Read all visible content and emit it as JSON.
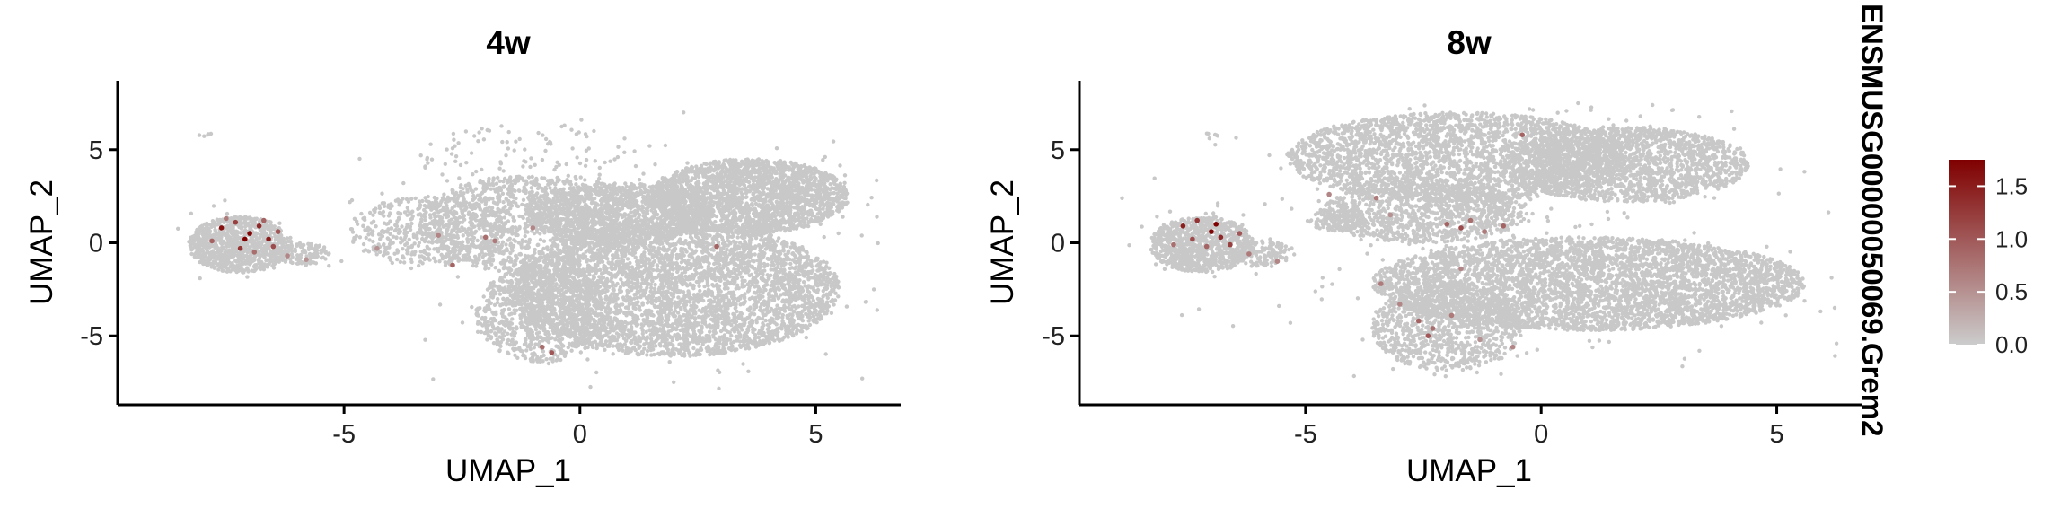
{
  "chart_data": [
    {
      "type": "scatter",
      "title": "4w",
      "xlabel": "UMAP_1",
      "ylabel": "UMAP_2",
      "xlim": [
        -9.8,
        6.8
      ],
      "ylim": [
        -8.7,
        8.7
      ],
      "x_ticks": [
        -5,
        0,
        5
      ],
      "y_ticks": [
        -5,
        0,
        5
      ],
      "grid": false,
      "background_color": "#c8c8c8",
      "cloud_regions": [
        {
          "cx": -7.2,
          "cy": -0.1,
          "rx": 1.1,
          "ry": 1.5,
          "n": 900
        },
        {
          "cx": -5.9,
          "cy": -0.6,
          "rx": 0.6,
          "ry": 0.6,
          "n": 120
        },
        {
          "cx": -3.2,
          "cy": 0.6,
          "rx": 1.7,
          "ry": 1.9,
          "n": 500
        },
        {
          "cx": -1.2,
          "cy": 1.0,
          "rx": 2.2,
          "ry": 2.6,
          "n": 1100
        },
        {
          "cx": 0.8,
          "cy": 1.6,
          "rx": 2.0,
          "ry": 1.6,
          "n": 1300
        },
        {
          "cx": 3.6,
          "cy": 2.5,
          "rx": 2.1,
          "ry": 2.0,
          "n": 2200
        },
        {
          "cx": 2.0,
          "cy": -2.5,
          "rx": 3.5,
          "ry": 3.6,
          "n": 4200
        },
        {
          "cx": -0.8,
          "cy": -3.8,
          "rx": 1.4,
          "ry": 2.6,
          "n": 800
        },
        {
          "cx": -1.0,
          "cy": 4.5,
          "rx": 2.4,
          "ry": 2.0,
          "n": 120
        },
        {
          "cx": -7.9,
          "cy": 5.8,
          "rx": 0.2,
          "ry": 0.1,
          "n": 6
        }
      ],
      "expressing": [
        {
          "x": -7.6,
          "y": 0.8,
          "v": 1.6
        },
        {
          "x": -7.3,
          "y": 1.1,
          "v": 1.2
        },
        {
          "x": -7.0,
          "y": 0.5,
          "v": 1.7
        },
        {
          "x": -6.8,
          "y": 0.9,
          "v": 1.4
        },
        {
          "x": -6.6,
          "y": 0.2,
          "v": 1.5
        },
        {
          "x": -6.5,
          "y": -0.2,
          "v": 1.1
        },
        {
          "x": -7.8,
          "y": 0.1,
          "v": 0.9
        },
        {
          "x": -7.2,
          "y": -0.3,
          "v": 1.3
        },
        {
          "x": -6.9,
          "y": -0.5,
          "v": 0.8
        },
        {
          "x": -6.4,
          "y": 0.6,
          "v": 1.0
        },
        {
          "x": -7.5,
          "y": 1.3,
          "v": 0.7
        },
        {
          "x": -6.2,
          "y": -0.7,
          "v": 0.6
        },
        {
          "x": -7.1,
          "y": 0.2,
          "v": 1.75
        },
        {
          "x": -6.7,
          "y": 1.2,
          "v": 0.9
        },
        {
          "x": -5.8,
          "y": -0.9,
          "v": 0.5
        },
        {
          "x": -3.0,
          "y": 0.4,
          "v": 0.6
        },
        {
          "x": -2.0,
          "y": 0.3,
          "v": 0.8
        },
        {
          "x": -1.8,
          "y": 0.1,
          "v": 0.7
        },
        {
          "x": -1.0,
          "y": 0.8,
          "v": 0.6
        },
        {
          "x": -2.7,
          "y": -1.2,
          "v": 0.9
        },
        {
          "x": -0.6,
          "y": -5.9,
          "v": 1.0
        },
        {
          "x": -0.8,
          "y": -5.6,
          "v": 0.8
        },
        {
          "x": 2.9,
          "y": -0.2,
          "v": 0.9
        },
        {
          "x": -4.3,
          "y": -0.3,
          "v": 0.5
        }
      ]
    },
    {
      "type": "scatter",
      "title": "8w",
      "xlabel": "UMAP_1",
      "ylabel": "UMAP_2",
      "xlim": [
        -9.8,
        6.8
      ],
      "ylim": [
        -8.7,
        8.7
      ],
      "x_ticks": [
        -5,
        0,
        5
      ],
      "y_ticks": [
        -5,
        0,
        5
      ],
      "grid": false,
      "background_color": "#c8c8c8",
      "cloud_regions": [
        {
          "cx": -7.2,
          "cy": -0.1,
          "rx": 1.1,
          "ry": 1.5,
          "n": 900
        },
        {
          "cx": -5.9,
          "cy": -0.6,
          "rx": 0.7,
          "ry": 0.7,
          "n": 140
        },
        {
          "cx": -1.8,
          "cy": 4.6,
          "rx": 3.6,
          "ry": 2.4,
          "n": 2600
        },
        {
          "cx": 1.8,
          "cy": 4.2,
          "rx": 2.6,
          "ry": 2.0,
          "n": 1800
        },
        {
          "cx": -2.5,
          "cy": 1.6,
          "rx": 2.2,
          "ry": 1.6,
          "n": 1000
        },
        {
          "cx": 1.0,
          "cy": -2.2,
          "rx": 4.6,
          "ry": 2.5,
          "n": 4200
        },
        {
          "cx": -2.0,
          "cy": -4.5,
          "rx": 1.6,
          "ry": 2.4,
          "n": 900
        },
        {
          "cx": -4.3,
          "cy": 1.2,
          "rx": 0.6,
          "ry": 0.6,
          "n": 120
        },
        {
          "cx": -7.0,
          "cy": 5.8,
          "rx": 0.2,
          "ry": 0.1,
          "n": 5
        }
      ],
      "expressing": [
        {
          "x": -7.6,
          "y": 0.9,
          "v": 1.5
        },
        {
          "x": -7.3,
          "y": 1.2,
          "v": 1.3
        },
        {
          "x": -7.0,
          "y": 0.6,
          "v": 1.7
        },
        {
          "x": -6.8,
          "y": 0.3,
          "v": 1.4
        },
        {
          "x": -6.6,
          "y": -0.1,
          "v": 1.2
        },
        {
          "x": -7.4,
          "y": 0.2,
          "v": 1.1
        },
        {
          "x": -7.1,
          "y": -0.2,
          "v": 0.9
        },
        {
          "x": -6.4,
          "y": 0.5,
          "v": 1.0
        },
        {
          "x": -7.8,
          "y": -0.1,
          "v": 0.8
        },
        {
          "x": -6.2,
          "y": -0.6,
          "v": 0.7
        },
        {
          "x": -6.9,
          "y": 1.0,
          "v": 1.75
        },
        {
          "x": -5.6,
          "y": -1.0,
          "v": 0.6
        },
        {
          "x": -4.5,
          "y": 2.6,
          "v": 0.6
        },
        {
          "x": -3.5,
          "y": 2.4,
          "v": 0.7
        },
        {
          "x": -3.2,
          "y": 1.5,
          "v": 0.5
        },
        {
          "x": -2.0,
          "y": 1.0,
          "v": 0.9
        },
        {
          "x": -1.7,
          "y": 0.8,
          "v": 1.1
        },
        {
          "x": -1.5,
          "y": 1.2,
          "v": 0.8
        },
        {
          "x": -1.2,
          "y": 0.6,
          "v": 0.7
        },
        {
          "x": -0.8,
          "y": 0.9,
          "v": 0.9
        },
        {
          "x": -0.4,
          "y": 5.8,
          "v": 0.9
        },
        {
          "x": -1.7,
          "y": -1.4,
          "v": 0.6
        },
        {
          "x": -3.4,
          "y": -2.2,
          "v": 0.7
        },
        {
          "x": -2.6,
          "y": -4.2,
          "v": 0.9
        },
        {
          "x": -2.3,
          "y": -4.6,
          "v": 0.8
        },
        {
          "x": -2.4,
          "y": -5.0,
          "v": 1.0
        },
        {
          "x": -3.0,
          "y": -3.3,
          "v": 0.6
        },
        {
          "x": -1.9,
          "y": -3.9,
          "v": 0.7
        },
        {
          "x": -0.6,
          "y": -5.6,
          "v": 0.6
        },
        {
          "x": -1.3,
          "y": -5.2,
          "v": 0.5
        }
      ]
    }
  ],
  "legend": {
    "title": "ENSMUSG00000050069.Grem2",
    "ticks": [
      0.0,
      0.5,
      1.0,
      1.5
    ],
    "tick_labels": [
      "0.0",
      "0.5",
      "1.0",
      "1.5"
    ],
    "range": [
      0.0,
      1.75
    ],
    "color_low": "#cccccc",
    "color_high": "#800000",
    "position": "right"
  }
}
